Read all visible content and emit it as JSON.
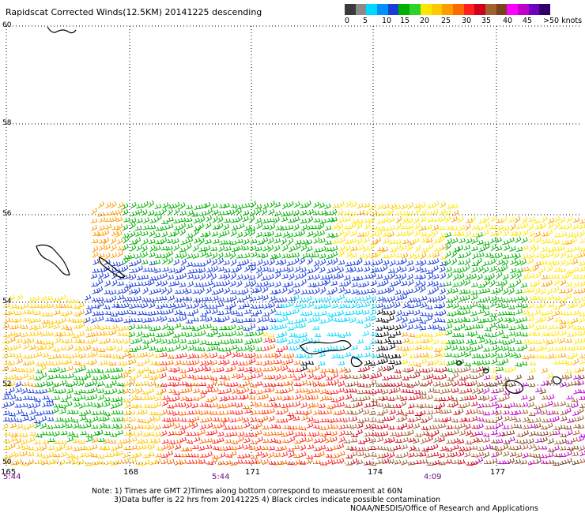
{
  "title": "Rapidscat Corrected Winds(12.5KM) 20141225 descending",
  "colorbar": {
    "colors": [
      "#3a3a3a",
      "#8a8a8a",
      "#00d8ff",
      "#0090ff",
      "#1a3dd8",
      "#00b000",
      "#2ad42a",
      "#ffe600",
      "#ffc800",
      "#ff9c00",
      "#ff6a00",
      "#ff2020",
      "#d00018",
      "#a06030",
      "#7a4020",
      "#ff00ff",
      "#c000c8",
      "#7000c0",
      "#30006a"
    ],
    "labels": [
      "0",
      "5",
      "10",
      "15",
      "20",
      "25",
      "30",
      "35",
      "40",
      "45",
      ">50 knots"
    ]
  },
  "map": {
    "lat_labels": [
      "60",
      "58",
      "56",
      "54",
      "52",
      "50"
    ],
    "lon_labels": [
      "165",
      "168",
      "171",
      "174",
      "177"
    ],
    "time_labels": [
      "5:44",
      "5:44",
      "4:09"
    ]
  },
  "notes": {
    "line1": "Note: 1) Times are GMT 2)Times along bottom correspond to measurement at 60N",
    "line2": "3)Data buffer is 22 hrs from 20141225 4) Black circles indicate possible contamination",
    "line3": "NOAA/NESDIS/Office of Research and Applications"
  }
}
